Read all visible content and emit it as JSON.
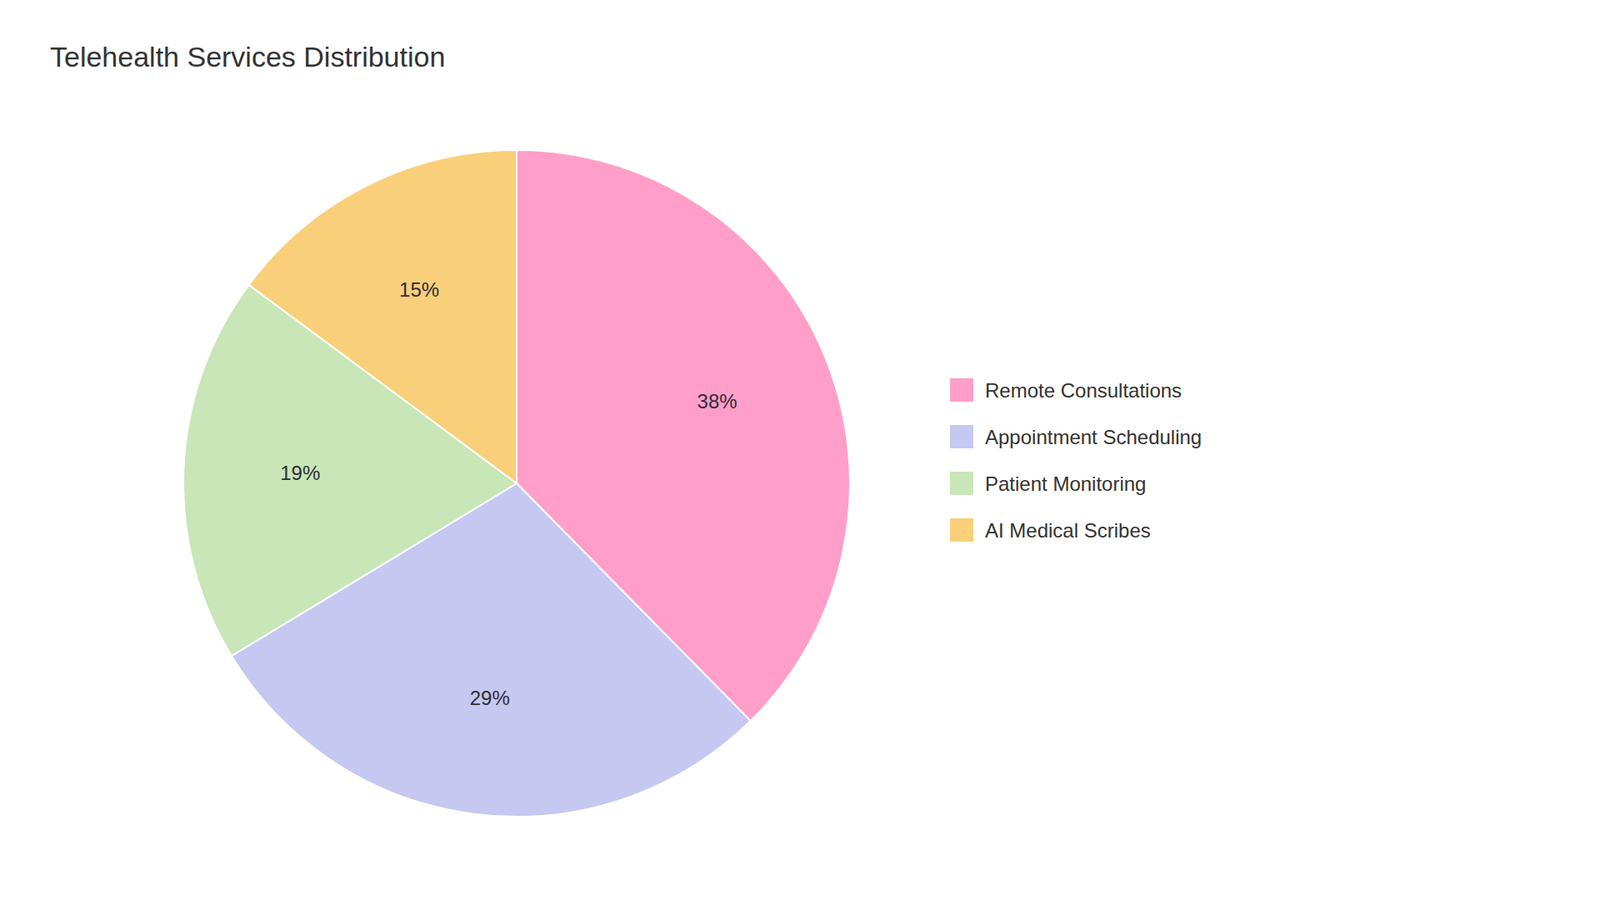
{
  "chart_data": {
    "type": "pie",
    "title": "Telehealth Services Distribution",
    "categories": [
      "Remote Consultations",
      "Appointment Scheduling",
      "Patient Monitoring",
      "AI Medical Scribes"
    ],
    "values": [
      38,
      29,
      19,
      15
    ],
    "value_labels": [
      "38%",
      "29%",
      "19%",
      "15%"
    ],
    "colors": [
      "#FF9EC8",
      "#C5C8F0",
      "#C8E6B8",
      "#F9CF7A"
    ],
    "data_labels": true,
    "legend": "right"
  }
}
